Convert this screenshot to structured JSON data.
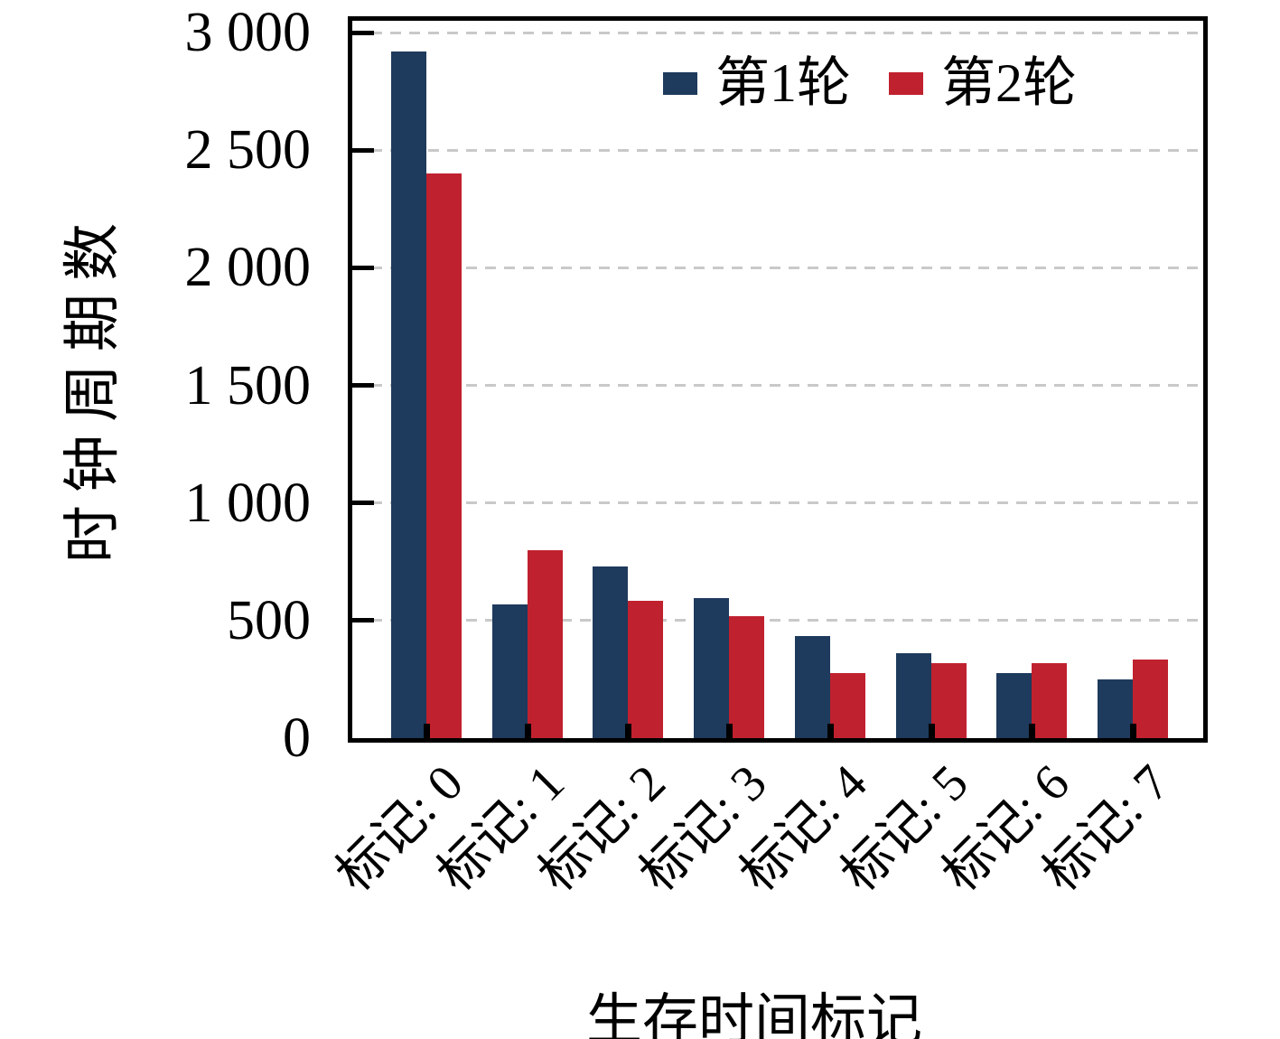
{
  "chart_data": {
    "type": "bar",
    "title": "",
    "xlabel": "生存时间标记",
    "ylabel": "时钟周期数",
    "categories": [
      "标记: 0",
      "标记: 1",
      "标记: 2",
      "标记: 3",
      "标记: 4",
      "标记: 5",
      "标记: 6",
      "标记: 7"
    ],
    "series": [
      {
        "name": "第1轮",
        "color": "#1e3a5c",
        "values": [
          2920,
          570,
          730,
          595,
          435,
          360,
          275,
          250
        ]
      },
      {
        "name": "第2轮",
        "color": "#c0212f",
        "values": [
          2400,
          800,
          585,
          520,
          275,
          320,
          320,
          335
        ]
      }
    ],
    "ylim": [
      0,
      3000
    ],
    "yticks": {
      "values": [
        0,
        500,
        1000,
        1500,
        2000,
        2500,
        3000
      ],
      "labels": [
        "0",
        "500",
        "1 000",
        "1 500",
        "2 000",
        "2 500",
        "3 000"
      ]
    },
    "grid": "horizontal-dashed",
    "legend_position": "top-right-inside",
    "colors": {
      "axis": "#000000",
      "gridline": "#c9c9c9",
      "background": "#ffffff"
    }
  }
}
